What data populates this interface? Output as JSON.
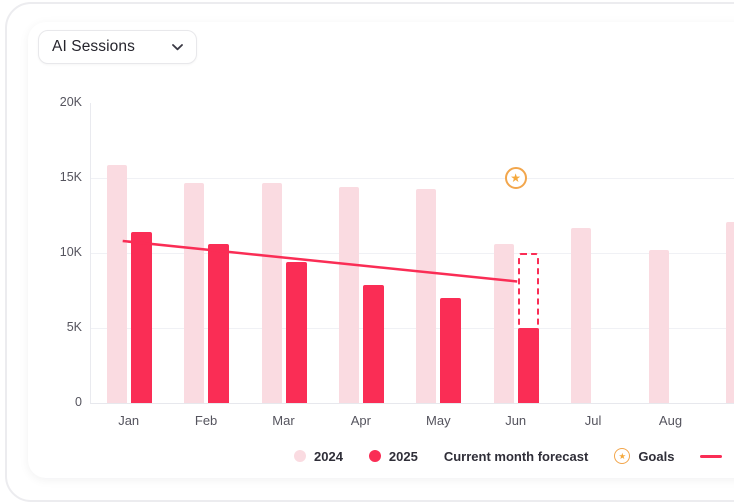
{
  "header": {
    "selector_label": "AI Sessions",
    "chevron_icon": "chevron-down"
  },
  "colors": {
    "accent_red": "#FA2D55",
    "light_pink": "#FADBE1",
    "goal_orange": "#F2A64C",
    "gridline": "#F0F1F5"
  },
  "chart_data": {
    "type": "bar",
    "title": "AI Sessions",
    "categories": [
      "Jan",
      "Feb",
      "Mar",
      "Apr",
      "May",
      "Jun",
      "Jul",
      "Aug",
      ""
    ],
    "series": [
      {
        "name": "2024",
        "color": "#FADBE1",
        "values": [
          15900,
          14700,
          14700,
          14400,
          14300,
          10600,
          11700,
          10200,
          12100
        ]
      },
      {
        "name": "2025",
        "color": "#FA2D55",
        "values": [
          11400,
          10600,
          9400,
          7900,
          7000,
          5000,
          null,
          null,
          null
        ]
      }
    ],
    "forecast": {
      "label": "Current month forecast",
      "category": "Jun",
      "value": 10000,
      "color": "#FA2D55"
    },
    "goal": {
      "label": "Goals",
      "category": "Jun",
      "value": 15000,
      "color": "#F2A64C"
    },
    "trend_line": {
      "from_category": "Jan",
      "from_value": 10800,
      "to_category": "Jun",
      "to_value": 8100,
      "color": "#FA2D55"
    },
    "y_ticks": [
      {
        "label": "20K",
        "value": 20000
      },
      {
        "label": "15K",
        "value": 15000
      },
      {
        "label": "10K",
        "value": 10000
      },
      {
        "label": "5K",
        "value": 5000
      },
      {
        "label": "0",
        "value": 0
      }
    ],
    "ylim": [
      0,
      20000
    ],
    "grid": "horizontal",
    "legend_position": "bottom"
  },
  "legend": {
    "items": [
      {
        "label": "2024",
        "marker": "dot",
        "color": "#FADBE1"
      },
      {
        "label": "2025",
        "marker": "dot",
        "color": "#FA2D55"
      },
      {
        "label": "Current month forecast",
        "marker": "none",
        "color": ""
      },
      {
        "label": "Goals",
        "marker": "star",
        "color": "#F2A64C"
      },
      {
        "label": "",
        "marker": "line",
        "color": "#FA2D55"
      }
    ]
  }
}
